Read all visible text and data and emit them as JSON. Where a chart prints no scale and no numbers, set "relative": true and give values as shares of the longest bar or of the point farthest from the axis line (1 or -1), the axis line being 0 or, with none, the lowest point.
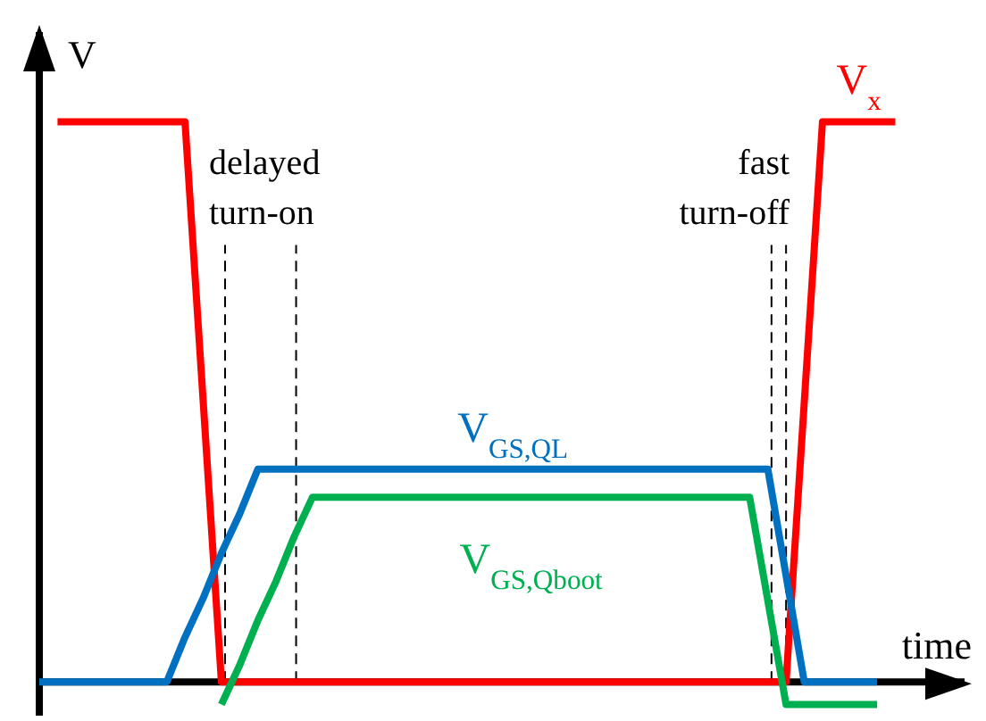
{
  "chart_data": {
    "type": "line",
    "relative": true,
    "xlabel": "time",
    "ylabel": "V",
    "legend": false,
    "categories": [
      null,
      null,
      null,
      null,
      null,
      null,
      null,
      null,
      null,
      null,
      null,
      null,
      null,
      null,
      null,
      null,
      null,
      null,
      null,
      null,
      null,
      null,
      null,
      null,
      null,
      null,
      null,
      null,
      null,
      null,
      null,
      null,
      null,
      null,
      null,
      null,
      null,
      null,
      null,
      null,
      null,
      null,
      null,
      null,
      null,
      null,
      null,
      null,
      null
    ],
    "series": [
      {
        "name": "V$_{x}$",
        "color": "#ff0000",
        "values": [
          null,
          1,
          1,
          1,
          1,
          1,
          1,
          1,
          1,
          0.5,
          0,
          0,
          0,
          0,
          0,
          0,
          0,
          0,
          0,
          0,
          0,
          0,
          0,
          0,
          0,
          0,
          0,
          0,
          0,
          0,
          0,
          0,
          0,
          0,
          0,
          0,
          0,
          0,
          0,
          0,
          0,
          0,
          0.5,
          1,
          1,
          1,
          1,
          1,
          null
        ]
      },
      {
        "name": "V$_{GS,QL}$",
        "color": "#0070c0",
        "values": [
          0,
          0,
          0,
          0,
          0,
          0,
          0,
          0,
          0.08,
          0.15,
          0.23,
          0.3,
          0.38,
          0.38,
          0.38,
          0.38,
          0.38,
          0.38,
          0.38,
          0.38,
          0.38,
          0.38,
          0.38,
          0.38,
          0.38,
          0.38,
          0.38,
          0.38,
          0.38,
          0.38,
          0.38,
          0.38,
          0.38,
          0.38,
          0.38,
          0.38,
          0.38,
          0.38,
          0.38,
          0.38,
          0.38,
          0.19,
          0,
          0,
          0,
          0,
          0,
          null,
          null
        ]
      },
      {
        "name": "V$_{GS,Qboot}$",
        "color": "#00b050",
        "values": [
          null,
          null,
          null,
          null,
          null,
          null,
          null,
          null,
          null,
          null,
          -0.04,
          0.03,
          0.11,
          0.18,
          0.26,
          0.33,
          0.33,
          0.33,
          0.33,
          0.33,
          0.33,
          0.33,
          0.33,
          0.33,
          0.33,
          0.33,
          0.33,
          0.33,
          0.33,
          0.33,
          0.33,
          0.33,
          0.33,
          0.33,
          0.33,
          0.33,
          0.33,
          0.33,
          0.33,
          0.33,
          0.145,
          -0.04,
          -0.04,
          -0.04,
          -0.04,
          -0.04,
          -0.04,
          null,
          null
        ]
      }
    ],
    "annotations": [
      "delayed turn-on",
      "fast turn-off"
    ]
  }
}
